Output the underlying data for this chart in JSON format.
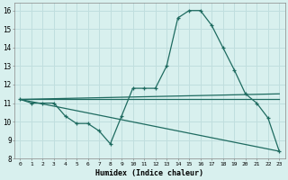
{
  "xlabel": "Humidex (Indice chaleur)",
  "bg_color": "#d8f0ee",
  "grid_color": "#c0dede",
  "line_color": "#1e6b60",
  "xlim": [
    -0.5,
    23.5
  ],
  "ylim": [
    8,
    16.4
  ],
  "yticks": [
    8,
    9,
    10,
    11,
    12,
    13,
    14,
    15,
    16
  ],
  "xticks": [
    0,
    1,
    2,
    3,
    4,
    5,
    6,
    7,
    8,
    9,
    10,
    11,
    12,
    13,
    14,
    15,
    16,
    17,
    18,
    19,
    20,
    21,
    22,
    23
  ],
  "series": [
    {
      "x": [
        0,
        1,
        2,
        3,
        4,
        5,
        6,
        7,
        8,
        9,
        10,
        11,
        12,
        13,
        14,
        15,
        16,
        17,
        18,
        19,
        20,
        21,
        22,
        23
      ],
      "y": [
        11.2,
        11.0,
        11.0,
        11.0,
        10.3,
        9.9,
        9.9,
        9.5,
        8.8,
        10.3,
        11.8,
        11.8,
        11.8,
        13.0,
        15.6,
        16.0,
        16.0,
        15.2,
        14.0,
        12.8,
        11.5,
        11.0,
        10.2,
        8.4
      ],
      "marker": true
    },
    {
      "x": [
        0,
        23
      ],
      "y": [
        11.2,
        11.2
      ],
      "marker": false
    },
    {
      "x": [
        0,
        23
      ],
      "y": [
        11.2,
        11.5
      ],
      "marker": false
    },
    {
      "x": [
        0,
        23
      ],
      "y": [
        11.2,
        8.4
      ],
      "marker": false
    }
  ]
}
